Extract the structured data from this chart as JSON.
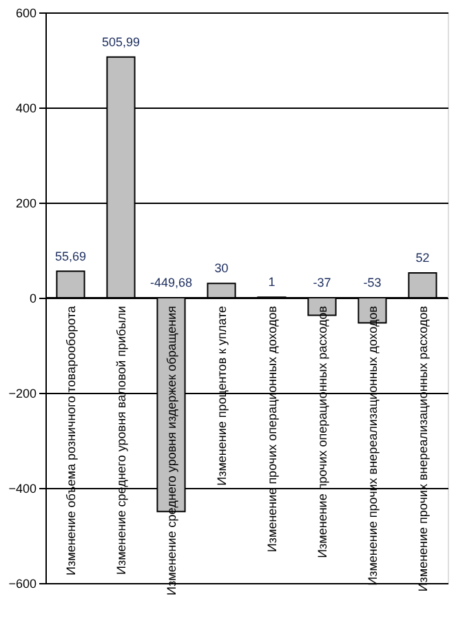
{
  "chart_data": {
    "type": "bar",
    "categories": [
      "Изменение объема розничного товарооборота",
      "Изменение среднего уровня валовой прибыли",
      "Изменение среднего уровня издержек обращения",
      "Изменение процентов к уплате",
      "Изменение прочих операционных доходов",
      "Изменение прочих операционных расходов",
      "Изменение прочих внереализационных доходов",
      "Изменение прочих внереализационных расходов"
    ],
    "values": [
      55.69,
      505.99,
      -449.68,
      30,
      1,
      -37,
      -53,
      52
    ],
    "value_labels": [
      "55,69",
      "505,99",
      "-449,68",
      "30",
      "1",
      "-37",
      "-53",
      "52"
    ],
    "color": "#c0c0c0",
    "ylim": [
      -600,
      600
    ],
    "yticks": [
      -600,
      -400,
      -200,
      0,
      200,
      400,
      600
    ],
    "grid": "y"
  }
}
